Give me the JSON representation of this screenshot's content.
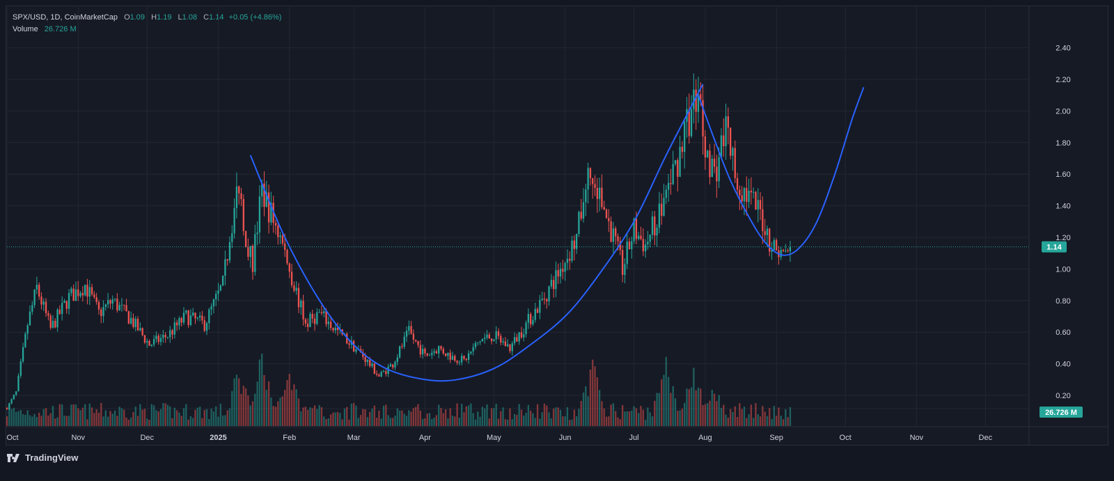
{
  "header": {
    "symbol": "SPX/USD, 1D, CoinMarketCap",
    "o_label": "O",
    "o_value": "1.09",
    "h_label": "H",
    "h_value": "1.19",
    "l_label": "L",
    "l_value": "1.08",
    "c_label": "C",
    "c_value": "1.14",
    "change": "+0.05 (+4.86%)",
    "volume_label": "Volume",
    "volume_value": "26.726 M"
  },
  "footer": {
    "brand": "TradingView",
    "logo_icon": "tradingview-logo-icon"
  },
  "colors": {
    "up": "#26a69a",
    "down": "#ef5350",
    "curve": "#2962ff",
    "background": "#161a25",
    "grid": "#232733"
  },
  "chart_data": {
    "type": "candlestick",
    "title": "SPX/USD, 1D, CoinMarketCap",
    "y_axis": {
      "ticks": [
        "0.20",
        "0.40",
        "0.60",
        "0.80",
        "1.00",
        "1.20",
        "1.40",
        "1.60",
        "1.80",
        "2.00",
        "2.20",
        "2.40"
      ],
      "ylim": [
        0.02,
        2.52
      ],
      "position": "right"
    },
    "x_axis": {
      "ticks": [
        "Oct",
        "Nov",
        "Dec",
        "2025",
        "Feb",
        "Mar",
        "Apr",
        "May",
        "Jun",
        "Jul",
        "Aug",
        "Sep",
        "Oct",
        "Nov",
        "Dec"
      ],
      "range": [
        "2024-10-01",
        "2025-12-20"
      ]
    },
    "last_price": {
      "value": 1.14,
      "label": "1.14"
    },
    "last_volume": {
      "label": "26.726 M"
    },
    "price_anchors": [
      [
        "2024-10-01",
        0.12
      ],
      [
        "2024-10-05",
        0.22
      ],
      [
        "2024-10-10",
        0.65
      ],
      [
        "2024-10-14",
        0.88
      ],
      [
        "2024-10-20",
        0.62
      ],
      [
        "2024-10-28",
        0.82
      ],
      [
        "2024-11-04",
        0.9
      ],
      [
        "2024-11-10",
        0.72
      ],
      [
        "2024-11-16",
        0.8
      ],
      [
        "2024-11-24",
        0.68
      ],
      [
        "2024-12-02",
        0.52
      ],
      [
        "2024-12-10",
        0.58
      ],
      [
        "2024-12-18",
        0.7
      ],
      [
        "2024-12-26",
        0.65
      ],
      [
        "2025-01-03",
        0.9
      ],
      [
        "2025-01-07",
        1.3
      ],
      [
        "2025-01-10",
        1.55
      ],
      [
        "2025-01-13",
        1.2
      ],
      [
        "2025-01-16",
        1.05
      ],
      [
        "2025-01-20",
        1.5
      ],
      [
        "2025-01-24",
        1.35
      ],
      [
        "2025-01-28",
        1.2
      ],
      [
        "2025-02-02",
        0.95
      ],
      [
        "2025-02-08",
        0.65
      ],
      [
        "2025-02-14",
        0.72
      ],
      [
        "2025-02-20",
        0.63
      ],
      [
        "2025-02-26",
        0.55
      ],
      [
        "2025-03-05",
        0.45
      ],
      [
        "2025-03-12",
        0.32
      ],
      [
        "2025-03-18",
        0.4
      ],
      [
        "2025-03-25",
        0.6
      ],
      [
        "2025-04-01",
        0.45
      ],
      [
        "2025-04-07",
        0.5
      ],
      [
        "2025-04-12",
        0.45
      ],
      [
        "2025-04-18",
        0.42
      ],
      [
        "2025-04-25",
        0.55
      ],
      [
        "2025-05-01",
        0.58
      ],
      [
        "2025-05-08",
        0.5
      ],
      [
        "2025-05-15",
        0.65
      ],
      [
        "2025-05-22",
        0.8
      ],
      [
        "2025-05-30",
        1.0
      ],
      [
        "2025-06-06",
        1.2
      ],
      [
        "2025-06-11",
        1.6
      ],
      [
        "2025-06-16",
        1.45
      ],
      [
        "2025-06-21",
        1.25
      ],
      [
        "2025-06-26",
        1.0
      ],
      [
        "2025-07-01",
        1.25
      ],
      [
        "2025-07-06",
        1.15
      ],
      [
        "2025-07-12",
        1.35
      ],
      [
        "2025-07-19",
        1.65
      ],
      [
        "2025-07-24",
        1.9
      ],
      [
        "2025-07-29",
        2.15
      ],
      [
        "2025-08-01",
        1.8
      ],
      [
        "2025-08-05",
        1.6
      ],
      [
        "2025-08-10",
        1.9
      ],
      [
        "2025-08-15",
        1.55
      ],
      [
        "2025-08-20",
        1.45
      ],
      [
        "2025-08-25",
        1.35
      ],
      [
        "2025-08-30",
        1.15
      ],
      [
        "2025-09-04",
        1.09
      ],
      [
        "2025-09-07",
        1.14
      ]
    ],
    "volume_peaks": [
      [
        "2025-01-10",
        0.42
      ],
      [
        "2025-01-20",
        0.5
      ],
      [
        "2025-02-01",
        0.45
      ],
      [
        "2025-06-13",
        0.48
      ],
      [
        "2025-07-15",
        0.45
      ],
      [
        "2025-07-27",
        0.4
      ],
      [
        "2025-08-05",
        0.3
      ]
    ],
    "annotation": {
      "type": "rounded-curve",
      "points": [
        [
          "2025-01-15",
          1.72
        ],
        [
          "2025-01-30",
          1.2
        ],
        [
          "2025-02-15",
          0.78
        ],
        [
          "2025-03-01",
          0.52
        ],
        [
          "2025-03-15",
          0.37
        ],
        [
          "2025-04-01",
          0.3
        ],
        [
          "2025-04-15",
          0.3
        ],
        [
          "2025-05-01",
          0.37
        ],
        [
          "2025-05-15",
          0.5
        ],
        [
          "2025-06-01",
          0.7
        ],
        [
          "2025-06-15",
          0.95
        ],
        [
          "2025-07-01",
          1.3
        ],
        [
          "2025-07-15",
          1.72
        ],
        [
          "2025-07-31",
          2.17
        ]
      ],
      "points_2": [
        [
          "2025-07-29",
          2.1
        ],
        [
          "2025-08-05",
          1.82
        ],
        [
          "2025-08-12",
          1.56
        ],
        [
          "2025-08-20",
          1.33
        ],
        [
          "2025-08-27",
          1.17
        ],
        [
          "2025-09-03",
          1.09
        ],
        [
          "2025-09-10",
          1.12
        ],
        [
          "2025-09-18",
          1.28
        ],
        [
          "2025-09-26",
          1.58
        ],
        [
          "2025-10-04",
          1.95
        ],
        [
          "2025-10-09",
          2.15
        ]
      ]
    }
  }
}
